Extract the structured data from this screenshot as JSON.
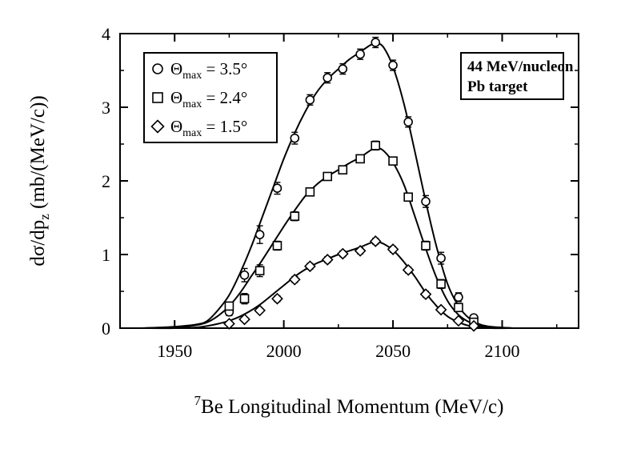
{
  "chart_data": {
    "type": "scatter",
    "title": "",
    "xlabel": {
      "superscript": "7",
      "text": "Be Longitudinal Momentum (MeV/c)"
    },
    "ylabel": {
      "prefix": "dσ/dp",
      "subscript": "z",
      "suffix": " (mb/(MeV/c))"
    },
    "xlim": [
      1925,
      2135
    ],
    "ylim": [
      0,
      4
    ],
    "xticks": [
      1950,
      2000,
      2050,
      2100
    ],
    "yticks": [
      0,
      1,
      2,
      3,
      4
    ],
    "xtick_labels": [
      "1950",
      "2000",
      "2050",
      "2100"
    ],
    "ytick_labels": [
      "0",
      "1",
      "2",
      "3",
      "4"
    ],
    "grid": false,
    "legend_position": "top-left",
    "annotation": {
      "lines": [
        "44 MeV/nucleon",
        "Pb target"
      ],
      "position": "top-right"
    },
    "series": [
      {
        "name": "Θmax = 3.5°",
        "symbol": "Θ",
        "sub": "max",
        "value_text": " = 3.5°",
        "marker": "circle",
        "points": [
          {
            "x": 1975,
            "y": 0.22,
            "err": 0.05
          },
          {
            "x": 1982,
            "y": 0.72,
            "err": 0.09
          },
          {
            "x": 1989,
            "y": 1.27,
            "err": 0.12
          },
          {
            "x": 1997,
            "y": 1.9,
            "err": 0.08
          },
          {
            "x": 2005,
            "y": 2.58,
            "err": 0.08
          },
          {
            "x": 2012,
            "y": 3.1,
            "err": 0.07
          },
          {
            "x": 2020,
            "y": 3.4,
            "err": 0.07
          },
          {
            "x": 2027,
            "y": 3.52,
            "err": 0.07
          },
          {
            "x": 2035,
            "y": 3.72,
            "err": 0.07
          },
          {
            "x": 2042,
            "y": 3.88,
            "err": 0.07
          },
          {
            "x": 2050,
            "y": 3.57,
            "err": 0.07
          },
          {
            "x": 2057,
            "y": 2.8,
            "err": 0.07
          },
          {
            "x": 2065,
            "y": 1.72,
            "err": 0.08
          },
          {
            "x": 2072,
            "y": 0.95,
            "err": 0.08
          },
          {
            "x": 2080,
            "y": 0.42,
            "err": 0.06
          },
          {
            "x": 2087,
            "y": 0.14,
            "err": 0.04
          }
        ],
        "curve": [
          [
            1935,
            0.0
          ],
          [
            1950,
            0.02
          ],
          [
            1960,
            0.05
          ],
          [
            1965,
            0.1
          ],
          [
            1970,
            0.25
          ],
          [
            1975,
            0.45
          ],
          [
            1980,
            0.75
          ],
          [
            1985,
            1.1
          ],
          [
            1990,
            1.5
          ],
          [
            1995,
            1.9
          ],
          [
            2000,
            2.3
          ],
          [
            2005,
            2.65
          ],
          [
            2010,
            2.95
          ],
          [
            2015,
            3.2
          ],
          [
            2020,
            3.38
          ],
          [
            2025,
            3.52
          ],
          [
            2030,
            3.65
          ],
          [
            2035,
            3.75
          ],
          [
            2040,
            3.85
          ],
          [
            2043,
            3.87
          ],
          [
            2046,
            3.8
          ],
          [
            2050,
            3.55
          ],
          [
            2055,
            3.05
          ],
          [
            2060,
            2.4
          ],
          [
            2065,
            1.72
          ],
          [
            2070,
            1.1
          ],
          [
            2075,
            0.6
          ],
          [
            2080,
            0.3
          ],
          [
            2085,
            0.13
          ],
          [
            2090,
            0.05
          ],
          [
            2095,
            0.02
          ],
          [
            2105,
            0.0
          ]
        ]
      },
      {
        "name": "Θmax = 2.4°",
        "symbol": "Θ",
        "sub": "max",
        "value_text": " = 2.4°",
        "marker": "square",
        "points": [
          {
            "x": 1975,
            "y": 0.3,
            "err": 0.05
          },
          {
            "x": 1982,
            "y": 0.4,
            "err": 0.07
          },
          {
            "x": 1989,
            "y": 0.78,
            "err": 0.08
          },
          {
            "x": 1997,
            "y": 1.12,
            "err": 0.06
          },
          {
            "x": 2005,
            "y": 1.52,
            "err": 0.06
          },
          {
            "x": 2012,
            "y": 1.85,
            "err": 0.05
          },
          {
            "x": 2020,
            "y": 2.06,
            "err": 0.05
          },
          {
            "x": 2027,
            "y": 2.15,
            "err": 0.05
          },
          {
            "x": 2035,
            "y": 2.3,
            "err": 0.05
          },
          {
            "x": 2042,
            "y": 2.48,
            "err": 0.06
          },
          {
            "x": 2050,
            "y": 2.27,
            "err": 0.05
          },
          {
            "x": 2057,
            "y": 1.78,
            "err": 0.05
          },
          {
            "x": 2065,
            "y": 1.12,
            "err": 0.06
          },
          {
            "x": 2072,
            "y": 0.6,
            "err": 0.06
          },
          {
            "x": 2080,
            "y": 0.28,
            "err": 0.05
          },
          {
            "x": 2087,
            "y": 0.08,
            "err": 0.03
          }
        ],
        "curve": [
          [
            1935,
            0.0
          ],
          [
            1950,
            0.01
          ],
          [
            1960,
            0.04
          ],
          [
            1965,
            0.08
          ],
          [
            1970,
            0.17
          ],
          [
            1975,
            0.3
          ],
          [
            1980,
            0.48
          ],
          [
            1985,
            0.7
          ],
          [
            1990,
            0.92
          ],
          [
            1995,
            1.15
          ],
          [
            2000,
            1.38
          ],
          [
            2005,
            1.6
          ],
          [
            2010,
            1.8
          ],
          [
            2015,
            1.95
          ],
          [
            2020,
            2.06
          ],
          [
            2025,
            2.15
          ],
          [
            2030,
            2.24
          ],
          [
            2035,
            2.32
          ],
          [
            2040,
            2.42
          ],
          [
            2043,
            2.45
          ],
          [
            2046,
            2.4
          ],
          [
            2050,
            2.25
          ],
          [
            2055,
            1.95
          ],
          [
            2060,
            1.52
          ],
          [
            2065,
            1.08
          ],
          [
            2070,
            0.68
          ],
          [
            2075,
            0.37
          ],
          [
            2080,
            0.18
          ],
          [
            2085,
            0.08
          ],
          [
            2090,
            0.03
          ],
          [
            2095,
            0.01
          ],
          [
            2105,
            0.0
          ]
        ]
      },
      {
        "name": "Θmax = 1.5°",
        "symbol": "Θ",
        "sub": "max",
        "value_text": " = 1.5°",
        "marker": "diamond",
        "points": [
          {
            "x": 1975,
            "y": 0.06,
            "err": 0.02
          },
          {
            "x": 1982,
            "y": 0.12,
            "err": 0.03
          },
          {
            "x": 1989,
            "y": 0.24,
            "err": 0.03
          },
          {
            "x": 1997,
            "y": 0.4,
            "err": 0.04
          },
          {
            "x": 2005,
            "y": 0.66,
            "err": 0.04
          },
          {
            "x": 2012,
            "y": 0.84,
            "err": 0.04
          },
          {
            "x": 2020,
            "y": 0.93,
            "err": 0.04
          },
          {
            "x": 2027,
            "y": 1.01,
            "err": 0.04
          },
          {
            "x": 2035,
            "y": 1.05,
            "err": 0.04
          },
          {
            "x": 2042,
            "y": 1.18,
            "err": 0.04
          },
          {
            "x": 2050,
            "y": 1.07,
            "err": 0.04
          },
          {
            "x": 2057,
            "y": 0.79,
            "err": 0.04
          },
          {
            "x": 2065,
            "y": 0.46,
            "err": 0.04
          },
          {
            "x": 2072,
            "y": 0.25,
            "err": 0.03
          },
          {
            "x": 2080,
            "y": 0.1,
            "err": 0.02
          },
          {
            "x": 2087,
            "y": 0.03,
            "err": 0.02
          }
        ],
        "curve": [
          [
            1935,
            0.0
          ],
          [
            1950,
            0.0
          ],
          [
            1960,
            0.01
          ],
          [
            1965,
            0.03
          ],
          [
            1970,
            0.06
          ],
          [
            1975,
            0.1
          ],
          [
            1980,
            0.16
          ],
          [
            1985,
            0.24
          ],
          [
            1990,
            0.34
          ],
          [
            1995,
            0.46
          ],
          [
            2000,
            0.58
          ],
          [
            2005,
            0.7
          ],
          [
            2010,
            0.8
          ],
          [
            2015,
            0.88
          ],
          [
            2020,
            0.94
          ],
          [
            2025,
            1.0
          ],
          [
            2030,
            1.05
          ],
          [
            2035,
            1.1
          ],
          [
            2040,
            1.16
          ],
          [
            2043,
            1.17
          ],
          [
            2046,
            1.14
          ],
          [
            2050,
            1.06
          ],
          [
            2055,
            0.9
          ],
          [
            2060,
            0.7
          ],
          [
            2065,
            0.48
          ],
          [
            2070,
            0.3
          ],
          [
            2075,
            0.16
          ],
          [
            2080,
            0.08
          ],
          [
            2085,
            0.03
          ],
          [
            2090,
            0.01
          ],
          [
            2095,
            0.0
          ],
          [
            2105,
            0.0
          ]
        ]
      }
    ]
  }
}
